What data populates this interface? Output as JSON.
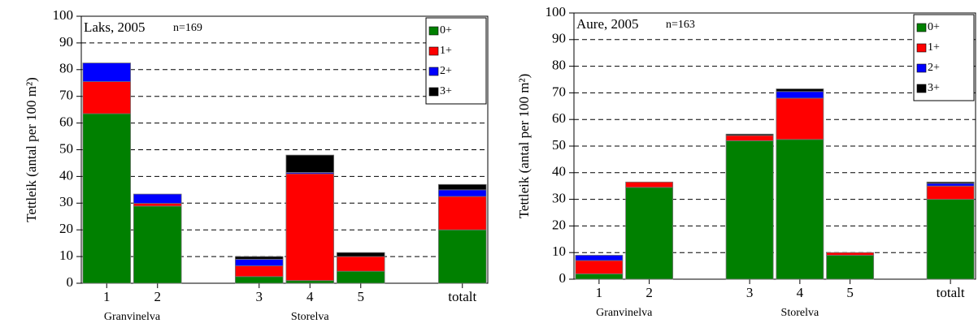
{
  "chart_data": [
    {
      "type": "bar",
      "stacked": true,
      "title": "Laks, 2005",
      "subtitle": "n=169",
      "y_label": "Tettleik (antal per 100 m²)",
      "categories": [
        "1",
        "2",
        null,
        "3",
        "4",
        "5",
        null,
        "totalt"
      ],
      "group_labels": [
        "Granvinelva",
        "Storelva"
      ],
      "series": [
        {
          "name": "0+",
          "color": "#008000",
          "values": [
            63.5,
            28.9,
            null,
            2.5,
            1,
            4.5,
            null,
            20
          ]
        },
        {
          "name": "1+",
          "color": "#ff0000",
          "values": [
            12,
            1,
            null,
            4,
            40,
            5.5,
            null,
            12.5
          ]
        },
        {
          "name": "2+",
          "color": "#0000ff",
          "values": [
            7,
            3.5,
            null,
            2.5,
            0.5,
            0,
            null,
            2.5
          ]
        },
        {
          "name": "3+",
          "color": "#000000",
          "values": [
            0,
            0,
            null,
            1,
            6.5,
            1.5,
            null,
            2
          ]
        }
      ],
      "ylim": [
        0,
        100
      ],
      "yticks": [
        0,
        10,
        20,
        30,
        40,
        50,
        60,
        70,
        80,
        90,
        100
      ],
      "grid": true,
      "legend": "upper right"
    },
    {
      "type": "bar",
      "stacked": true,
      "title": "Aure, 2005",
      "subtitle": "n=163",
      "y_label": "Tettleik (antal per 100 m²)",
      "categories": [
        "1",
        "2",
        null,
        "3",
        "4",
        "5",
        null,
        "totalt"
      ],
      "group_labels": [
        "Granvinelva",
        "Storelva"
      ],
      "series": [
        {
          "name": "0+",
          "color": "#008000",
          "values": [
            2,
            34.5,
            null,
            52,
            52.5,
            9,
            null,
            30
          ]
        },
        {
          "name": "1+",
          "color": "#ff0000",
          "values": [
            5,
            2,
            null,
            2,
            15.5,
            1,
            null,
            5
          ]
        },
        {
          "name": "2+",
          "color": "#0000ff",
          "values": [
            2,
            0,
            null,
            0,
            2.5,
            0,
            null,
            1
          ]
        },
        {
          "name": "3+",
          "color": "#000000",
          "values": [
            0,
            0,
            null,
            0.5,
            1,
            0,
            null,
            0.5
          ]
        }
      ],
      "ylim": [
        0,
        100
      ],
      "yticks": [
        0,
        10,
        20,
        30,
        40,
        50,
        60,
        70,
        80,
        90,
        100
      ],
      "grid": true,
      "legend": "upper right"
    }
  ]
}
